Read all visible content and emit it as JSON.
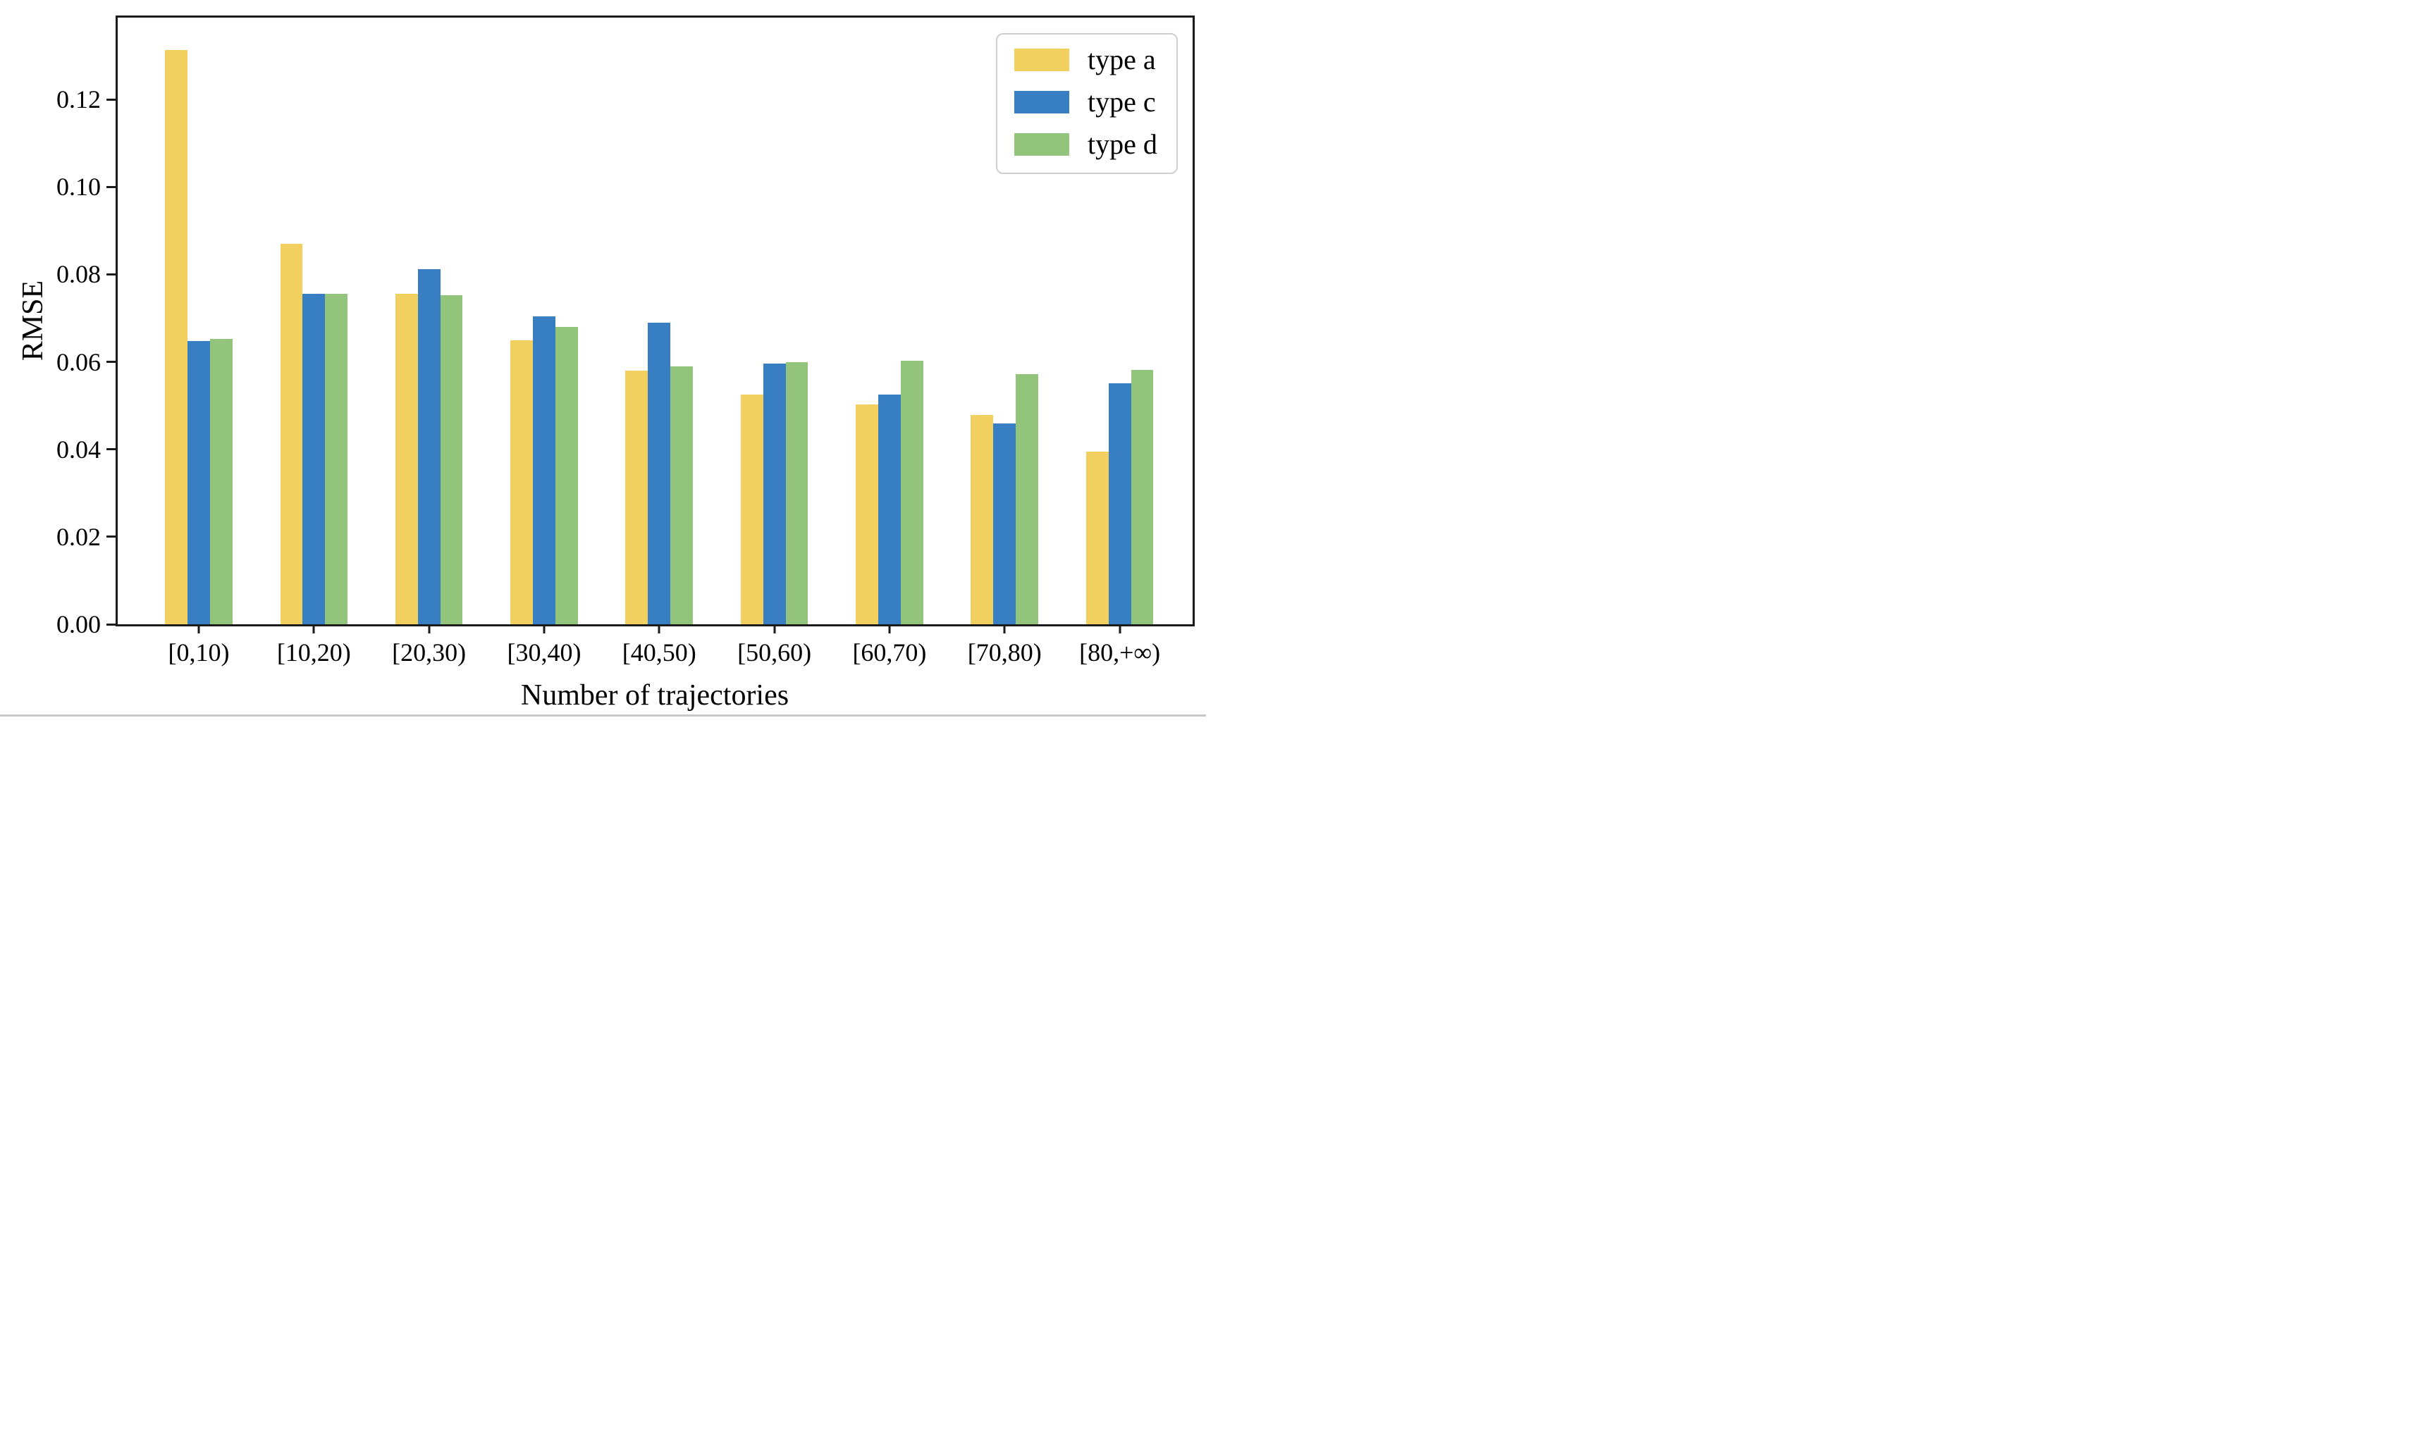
{
  "chart_data": {
    "type": "bar",
    "title": "",
    "xlabel": "Number of trajectories",
    "ylabel": "RMSE",
    "categories": [
      "[0,10)",
      "[10,20)",
      "[20,30)",
      "[30,40)",
      "[40,50)",
      "[50,60)",
      "[60,70)",
      "[70,80)",
      "[80,+∞)"
    ],
    "series": [
      {
        "name": "type a",
        "color": "#F2D05F",
        "values": [
          0.1313,
          0.087,
          0.0755,
          0.065,
          0.058,
          0.0525,
          0.0503,
          0.0479,
          0.0395
        ]
      },
      {
        "name": "type c",
        "color": "#377FC2",
        "values": [
          0.0648,
          0.0756,
          0.0812,
          0.0704,
          0.069,
          0.0596,
          0.0525,
          0.0459,
          0.0551
        ]
      },
      {
        "name": "type d",
        "color": "#93C47B",
        "values": [
          0.0652,
          0.0756,
          0.0752,
          0.068,
          0.059,
          0.0599,
          0.0603,
          0.0572,
          0.0581
        ]
      }
    ],
    "ylim": [
      0,
      0.1387
    ],
    "yticks": [
      0.0,
      0.02,
      0.04,
      0.06,
      0.08,
      0.1,
      0.12
    ],
    "ytick_decimals": 2,
    "grid": false,
    "legend_position": "upper right",
    "frame_color": "#1b1b1b",
    "layout": {
      "first_center_frac": 0.0754,
      "center_step_frac": 0.1071,
      "bar_width_frac": 0.0209
    }
  }
}
